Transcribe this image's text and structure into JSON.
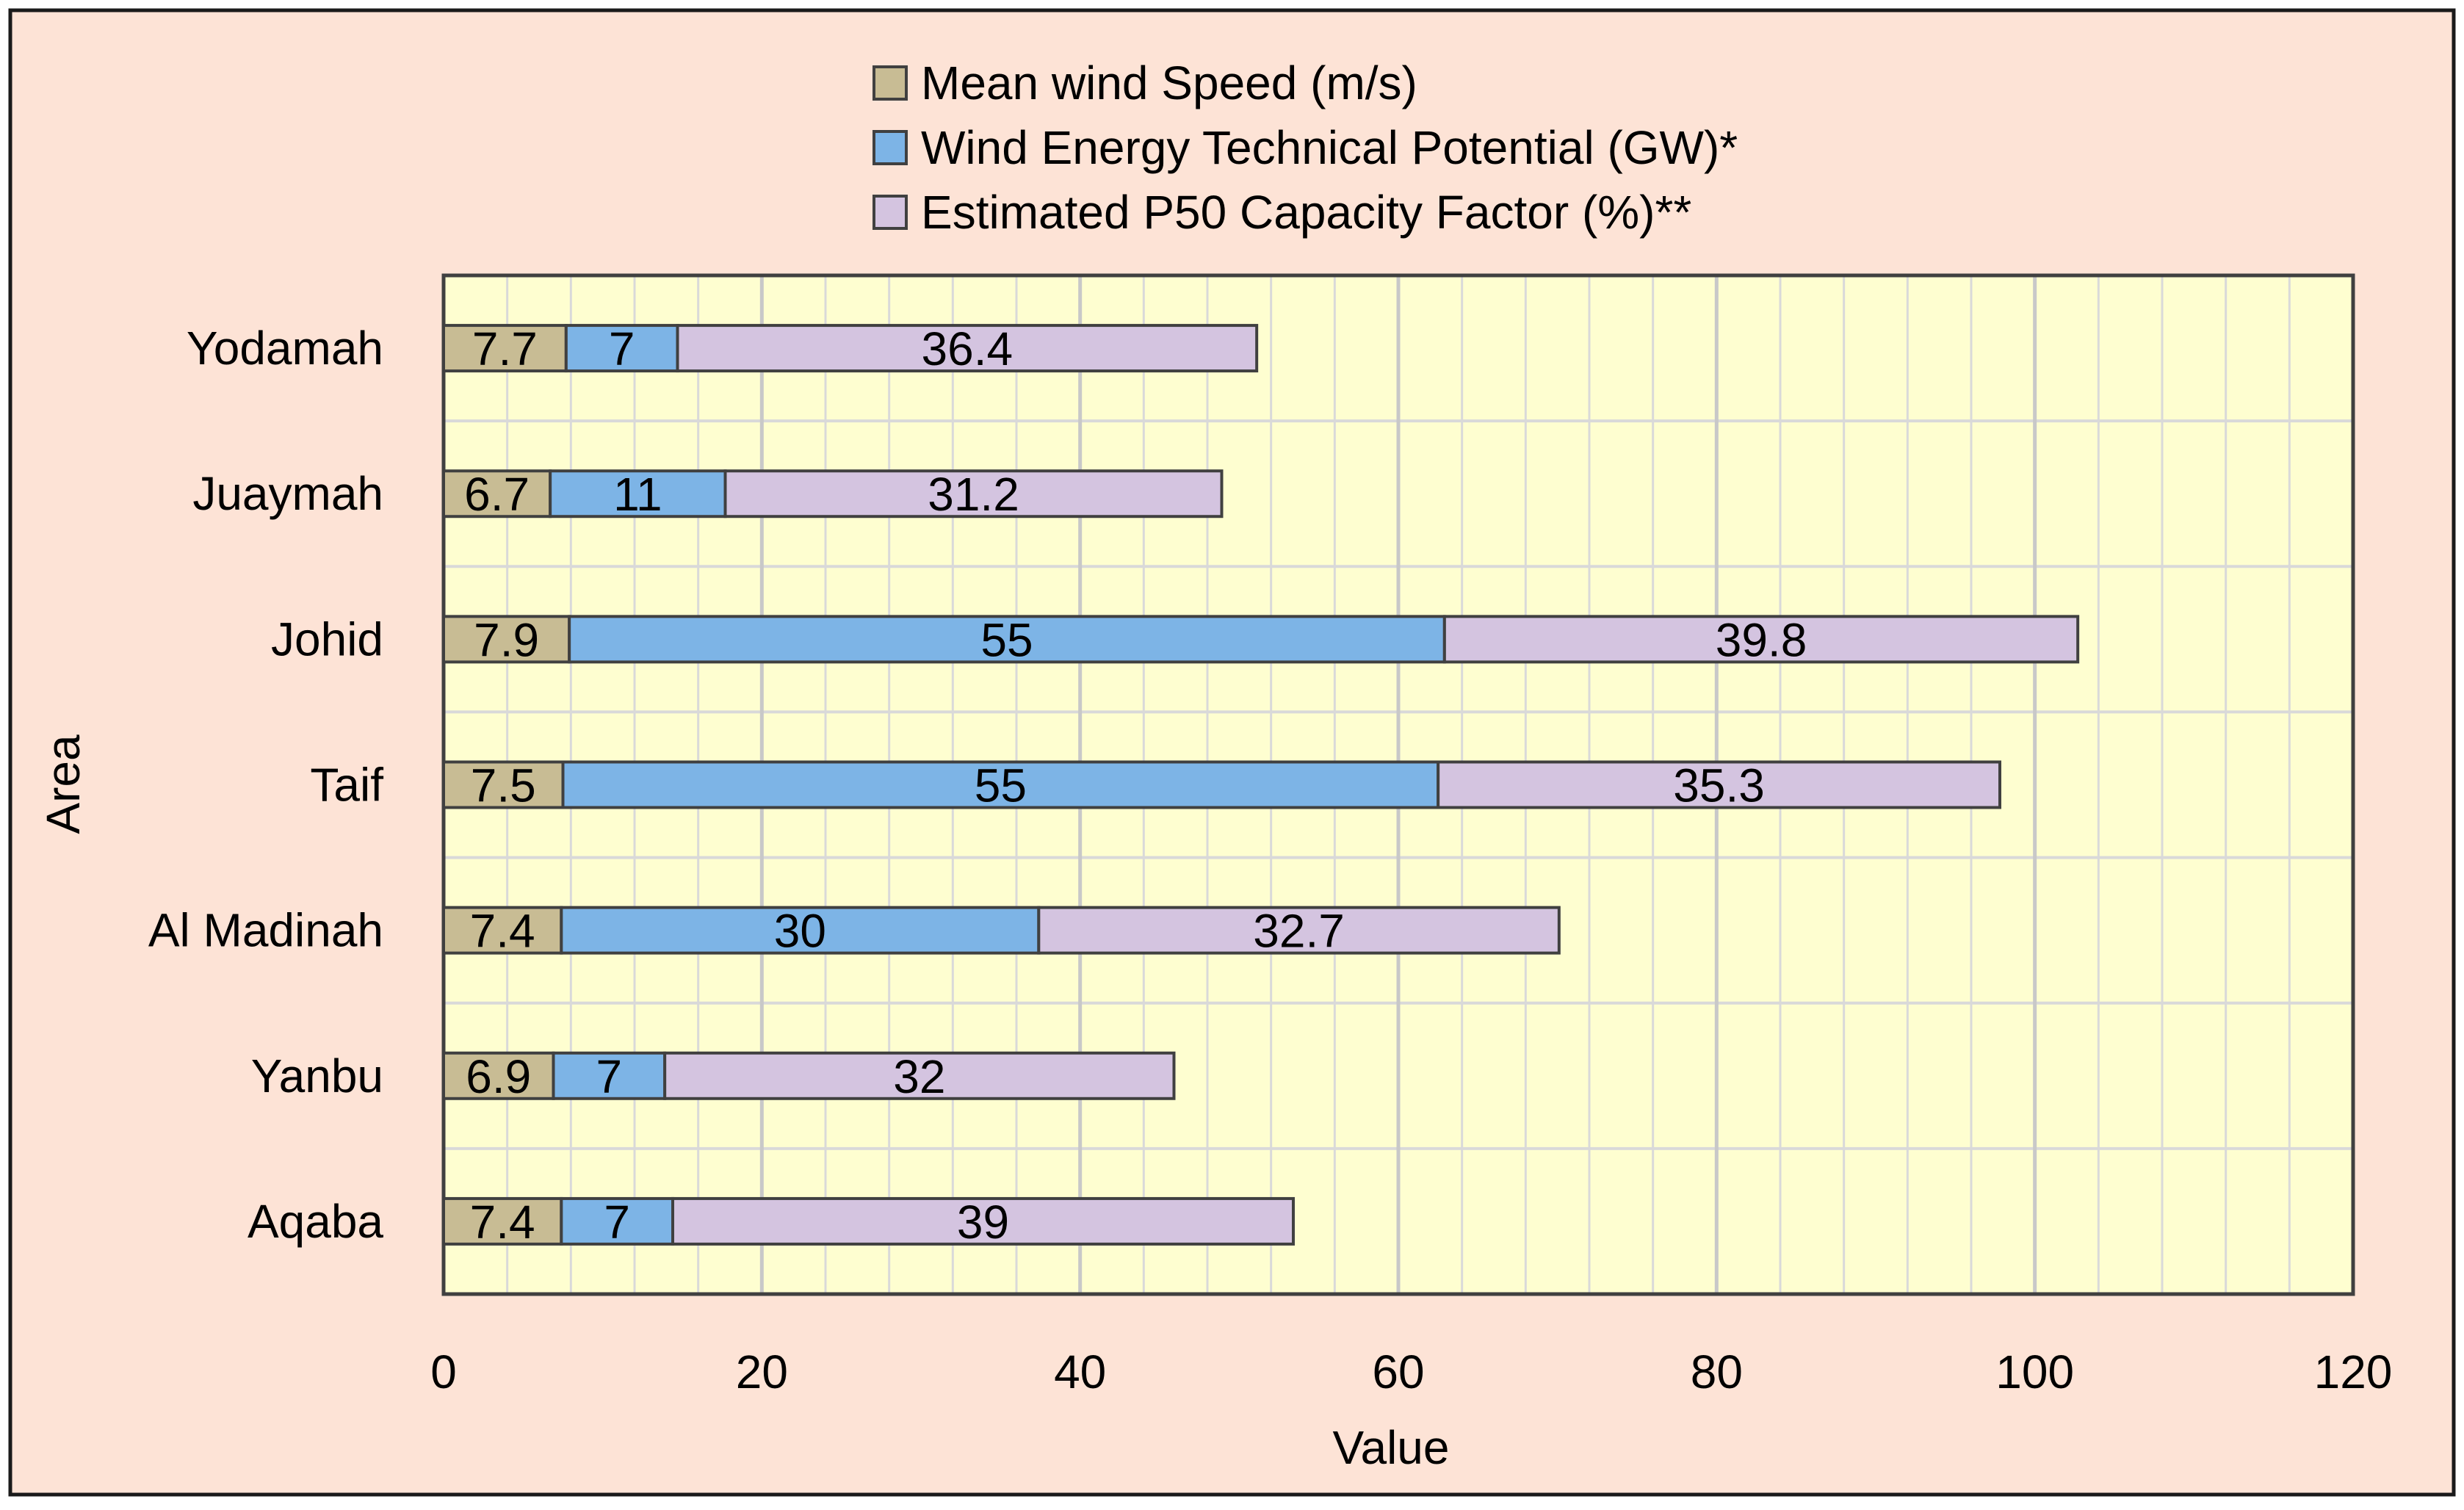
{
  "chart_data": {
    "type": "bar",
    "orientation": "horizontal",
    "stacked": true,
    "title": "",
    "xlabel": "Value",
    "ylabel": "Area",
    "xlim": [
      0,
      120
    ],
    "x_ticks": [
      0,
      20,
      40,
      60,
      80,
      100,
      120
    ],
    "x_minor_step": 4,
    "grid": true,
    "legend_position": "top-center",
    "categories": [
      "Yodamah",
      "Juaymah",
      "Johid",
      "Taif",
      "Al Madinah",
      "Yanbu",
      "Aqaba"
    ],
    "series": [
      {
        "name": "Mean wind Speed (m/s)",
        "color": "#c8bc94",
        "values": [
          7.7,
          6.7,
          7.9,
          7.5,
          7.4,
          6.9,
          7.4
        ]
      },
      {
        "name": "Wind Energy Technical Potential (GW)*",
        "color": "#7db4e6",
        "values": [
          7,
          11,
          55,
          55,
          30,
          7,
          7
        ]
      },
      {
        "name": "Estimated P50 Capacity Factor (%)**",
        "color": "#d4c4e0",
        "values": [
          36.4,
          31.2,
          39.8,
          35.3,
          32.7,
          32,
          39
        ]
      }
    ],
    "colors": {
      "page_background": "#fde3d6",
      "plot_background": "#fefed0",
      "grid": "#d9d9d9",
      "outline": "#404040",
      "text": "#000000"
    }
  }
}
